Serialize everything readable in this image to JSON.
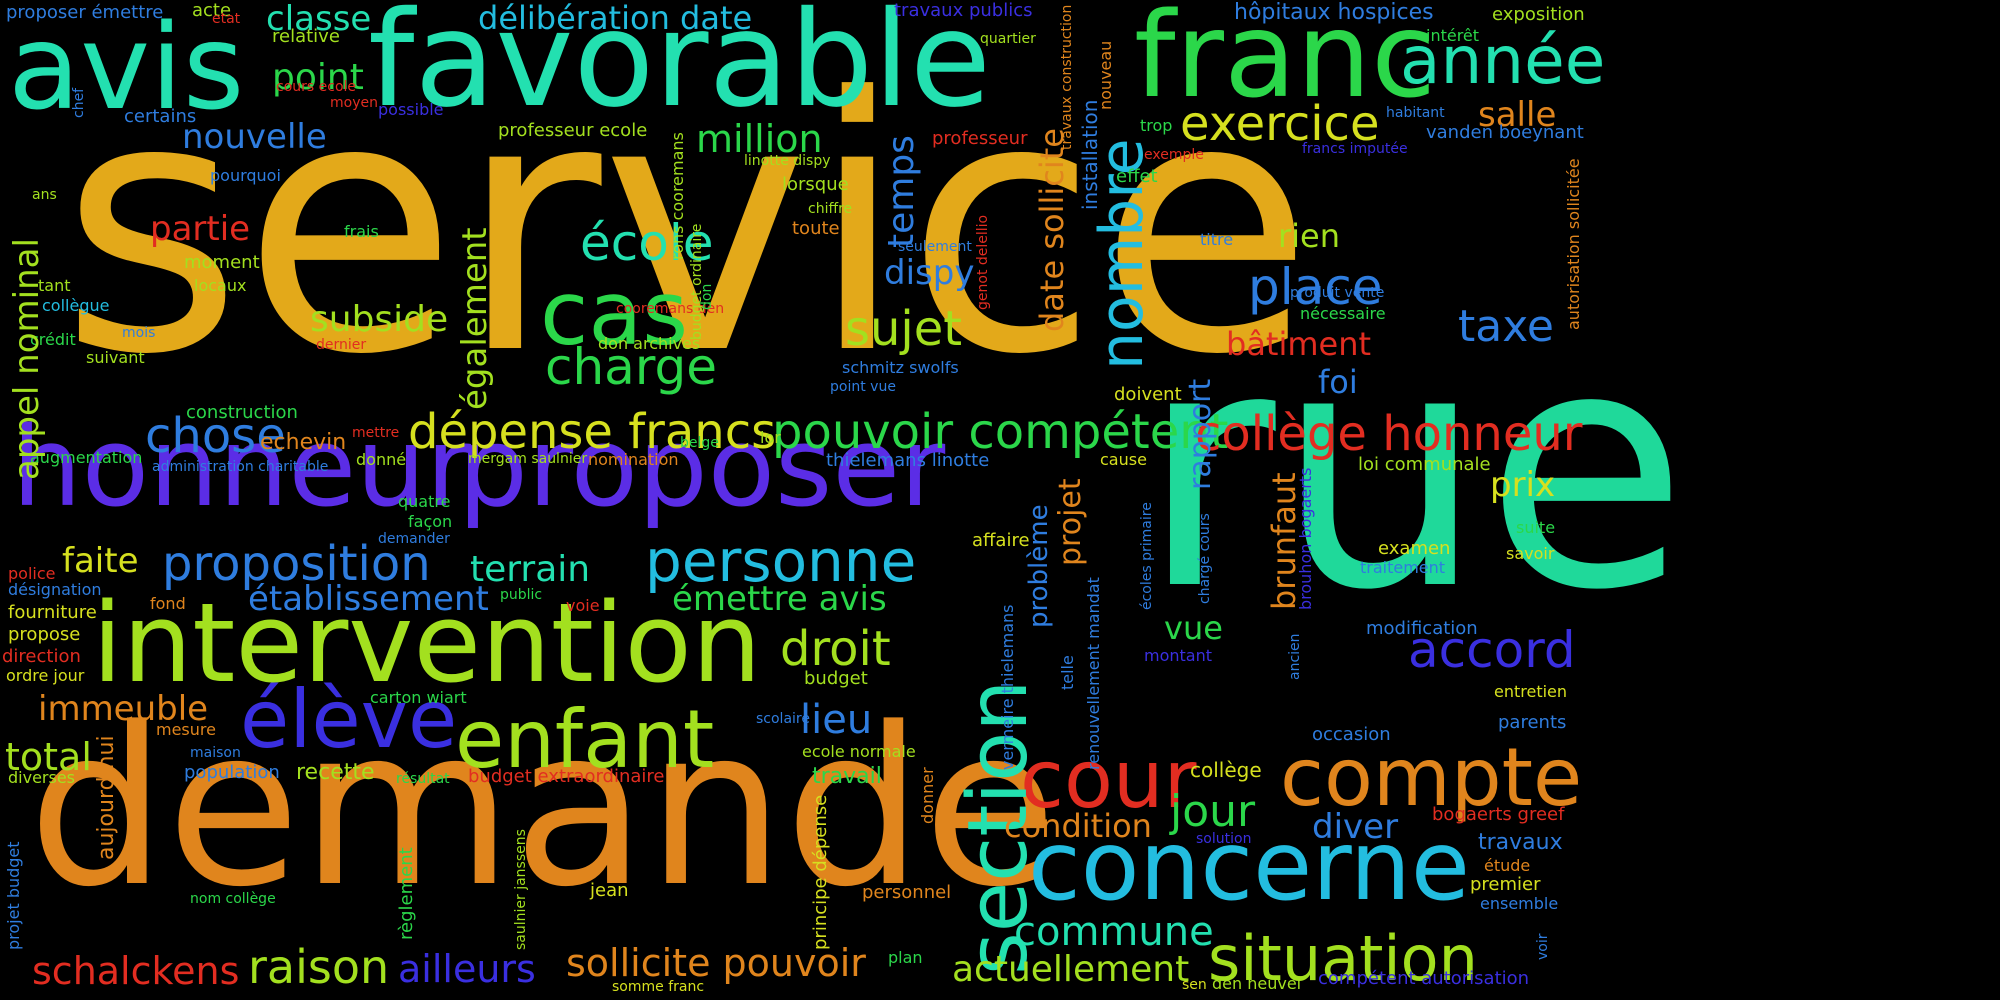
{
  "palette": {
    "orange": "#e0851d",
    "gold": "#e3a91a",
    "teal": "#1fd99a",
    "aqua": "#23e0b0",
    "cyan": "#23bde0",
    "blue": "#2f7ddf",
    "indigo": "#3a2fe0",
    "violet": "#5b2de6",
    "green": "#2bd74a",
    "lime": "#a3e01f",
    "yellow": "#d6e01f",
    "red": "#e22d21"
  },
  "words": [
    {
      "text": "service",
      "color": "gold"
    },
    {
      "text": "rue",
      "color": "teal"
    },
    {
      "text": "demande",
      "color": "orange"
    },
    {
      "text": "favorable",
      "color": "aqua"
    },
    {
      "text": "avis",
      "color": "aqua"
    },
    {
      "text": "franc",
      "color": "green"
    },
    {
      "text": "honneur",
      "color": "violet"
    },
    {
      "text": "proposer",
      "color": "violet"
    },
    {
      "text": "intervention",
      "color": "lime"
    },
    {
      "text": "concerne",
      "color": "cyan"
    },
    {
      "text": "enfant",
      "color": "lime"
    },
    {
      "text": "élève",
      "color": "indigo"
    },
    {
      "text": "cas",
      "color": "green"
    },
    {
      "text": "cour",
      "color": "red"
    },
    {
      "text": "compte",
      "color": "orange"
    },
    {
      "text": "section",
      "color": "aqua"
    },
    {
      "text": "situation",
      "color": "lime"
    },
    {
      "text": "année",
      "color": "aqua"
    },
    {
      "text": "personne",
      "color": "cyan"
    },
    {
      "text": "dépense francs",
      "color": "yellow"
    },
    {
      "text": "pouvoir compétent",
      "color": "green"
    },
    {
      "text": "collège honneur",
      "color": "red"
    },
    {
      "text": "exercice",
      "color": "yellow"
    },
    {
      "text": "nombre",
      "color": "cyan"
    },
    {
      "text": "école",
      "color": "aqua"
    },
    {
      "text": "charge",
      "color": "green"
    },
    {
      "text": "place",
      "color": "blue"
    },
    {
      "text": "proposition",
      "color": "blue"
    },
    {
      "text": "sujet",
      "color": "lime"
    },
    {
      "text": "droit",
      "color": "lime"
    },
    {
      "text": "accord",
      "color": "indigo"
    },
    {
      "text": "raison",
      "color": "lime"
    },
    {
      "text": "sollicite pouvoir",
      "color": "orange"
    },
    {
      "text": "actuellement",
      "color": "lime"
    },
    {
      "text": "schalckens",
      "color": "red"
    },
    {
      "text": "ailleurs",
      "color": "indigo"
    },
    {
      "text": "commune",
      "color": "aqua"
    },
    {
      "text": "jour",
      "color": "green"
    },
    {
      "text": "chose",
      "color": "blue"
    },
    {
      "text": "terrain",
      "color": "aqua"
    },
    {
      "text": "établissement",
      "color": "blue"
    },
    {
      "text": "émettre avis",
      "color": "green"
    },
    {
      "text": "délibération date",
      "color": "cyan"
    },
    {
      "text": "classe",
      "color": "aqua"
    },
    {
      "text": "point",
      "color": "green"
    },
    {
      "text": "nouvelle",
      "color": "blue"
    },
    {
      "text": "million",
      "color": "green"
    },
    {
      "text": "partie",
      "color": "red"
    },
    {
      "text": "subside",
      "color": "lime"
    },
    {
      "text": "lieu",
      "color": "blue"
    },
    {
      "text": "taxe",
      "color": "blue"
    },
    {
      "text": "salle",
      "color": "orange"
    },
    {
      "text": "bâtiment",
      "color": "red"
    },
    {
      "text": "prix",
      "color": "yellow"
    },
    {
      "text": "total",
      "color": "lime"
    },
    {
      "text": "immeuble",
      "color": "orange"
    },
    {
      "text": "faite",
      "color": "yellow"
    },
    {
      "text": "temps",
      "color": "blue"
    },
    {
      "text": "dispy",
      "color": "blue"
    },
    {
      "text": "rien",
      "color": "lime"
    },
    {
      "text": "foi",
      "color": "blue"
    },
    {
      "text": "vue",
      "color": "green"
    },
    {
      "text": "diver",
      "color": "blue"
    },
    {
      "text": "condition",
      "color": "orange"
    },
    {
      "text": "recette",
      "color": "lime"
    },
    {
      "text": "travail",
      "color": "green"
    },
    {
      "text": "population",
      "color": "blue"
    },
    {
      "text": "hôpitaux hospices",
      "color": "blue"
    },
    {
      "text": "vanden boeynant",
      "color": "blue"
    },
    {
      "text": "exposition",
      "color": "lime"
    },
    {
      "text": "travaux publics",
      "color": "indigo"
    },
    {
      "text": "proposer émettre",
      "color": "blue"
    },
    {
      "text": "acte",
      "color": "lime"
    },
    {
      "text": "etat",
      "color": "red"
    },
    {
      "text": "relative",
      "color": "lime"
    },
    {
      "text": "cours ecole",
      "color": "red"
    },
    {
      "text": "moyen",
      "color": "red"
    },
    {
      "text": "possible",
      "color": "indigo"
    },
    {
      "text": "certains",
      "color": "blue"
    },
    {
      "text": "professeur ecole",
      "color": "lime"
    },
    {
      "text": "professeur",
      "color": "red"
    },
    {
      "text": "quartier",
      "color": "lime"
    },
    {
      "text": "linotte dispy",
      "color": "lime"
    },
    {
      "text": "lorsque",
      "color": "lime"
    },
    {
      "text": "chiffre",
      "color": "lime"
    },
    {
      "text": "toute",
      "color": "orange"
    },
    {
      "text": "pourquoi",
      "color": "blue"
    },
    {
      "text": "frais",
      "color": "green"
    },
    {
      "text": "moment",
      "color": "lime"
    },
    {
      "text": "locaux",
      "color": "lime"
    },
    {
      "text": "ans",
      "color": "lime"
    },
    {
      "text": "tant",
      "color": "lime"
    },
    {
      "text": "collègue",
      "color": "cyan"
    },
    {
      "text": "mois",
      "color": "blue"
    },
    {
      "text": "dernier",
      "color": "red"
    },
    {
      "text": "crédit",
      "color": "green"
    },
    {
      "text": "suivant",
      "color": "lime"
    },
    {
      "text": "construction",
      "color": "green"
    },
    {
      "text": "echevin",
      "color": "orange"
    },
    {
      "text": "mettre",
      "color": "red"
    },
    {
      "text": "augmentation",
      "color": "green"
    },
    {
      "text": "administration charitable",
      "color": "blue"
    },
    {
      "text": "donné",
      "color": "lime"
    },
    {
      "text": "mergam saulnier",
      "color": "lime"
    },
    {
      "text": "nomination",
      "color": "orange"
    },
    {
      "text": "thielemans linotte",
      "color": "blue"
    },
    {
      "text": "cause",
      "color": "yellow"
    },
    {
      "text": "loi communale",
      "color": "lime"
    },
    {
      "text": "quatre",
      "color": "green"
    },
    {
      "text": "façon",
      "color": "green"
    },
    {
      "text": "demander",
      "color": "blue"
    },
    {
      "text": "police",
      "color": "red"
    },
    {
      "text": "désignation",
      "color": "blue"
    },
    {
      "text": "fond",
      "color": "orange"
    },
    {
      "text": "fourniture",
      "color": "yellow"
    },
    {
      "text": "propose",
      "color": "yellow"
    },
    {
      "text": "direction",
      "color": "red"
    },
    {
      "text": "ordre jour",
      "color": "yellow"
    },
    {
      "text": "diverses",
      "color": "lime"
    },
    {
      "text": "mesure",
      "color": "orange"
    },
    {
      "text": "maison",
      "color": "blue"
    },
    {
      "text": "nom collège",
      "color": "green"
    },
    {
      "text": "jean",
      "color": "yellow"
    },
    {
      "text": "public",
      "color": "green"
    },
    {
      "text": "voie",
      "color": "red"
    },
    {
      "text": "carton wiart",
      "color": "green"
    },
    {
      "text": "résultat",
      "color": "green"
    },
    {
      "text": "budget extraordinaire",
      "color": "red"
    },
    {
      "text": "scolaire",
      "color": "blue"
    },
    {
      "text": "ecole normale",
      "color": "lime"
    },
    {
      "text": "budget",
      "color": "lime"
    },
    {
      "text": "seulement",
      "color": "blue"
    },
    {
      "text": "schmitz swolfs",
      "color": "blue"
    },
    {
      "text": "point vue",
      "color": "blue"
    },
    {
      "text": "belge",
      "color": "green"
    },
    {
      "text": "lor",
      "color": "lime"
    },
    {
      "text": "cooremans den",
      "color": "red"
    },
    {
      "text": "don archives",
      "color": "lime"
    },
    {
      "text": "affaire",
      "color": "yellow"
    },
    {
      "text": "examen",
      "color": "yellow"
    },
    {
      "text": "suite",
      "color": "green"
    },
    {
      "text": "savoir",
      "color": "yellow"
    },
    {
      "text": "traitement",
      "color": "blue"
    },
    {
      "text": "modification",
      "color": "blue"
    },
    {
      "text": "entretien",
      "color": "yellow"
    },
    {
      "text": "parents",
      "color": "blue"
    },
    {
      "text": "occasion",
      "color": "blue"
    },
    {
      "text": "montant",
      "color": "indigo"
    },
    {
      "text": "collège",
      "color": "yellow"
    },
    {
      "text": "bogaerts greef",
      "color": "red"
    },
    {
      "text": "travaux",
      "color": "blue"
    },
    {
      "text": "étude",
      "color": "orange"
    },
    {
      "text": "premier",
      "color": "yellow"
    },
    {
      "text": "ensemble",
      "color": "blue"
    },
    {
      "text": "solution",
      "color": "indigo"
    },
    {
      "text": "compétent autorisation",
      "color": "indigo"
    },
    {
      "text": "den heuvel",
      "color": "lime"
    },
    {
      "text": "sen",
      "color": "yellow"
    },
    {
      "text": "somme franc",
      "color": "yellow"
    },
    {
      "text": "plan",
      "color": "green"
    },
    {
      "text": "personnel",
      "color": "orange"
    },
    {
      "text": "doivent",
      "color": "yellow"
    },
    {
      "text": "effet",
      "color": "green"
    },
    {
      "text": "trop",
      "color": "green"
    },
    {
      "text": "exemple",
      "color": "red"
    },
    {
      "text": "titre",
      "color": "blue"
    },
    {
      "text": "produit vente",
      "color": "blue"
    },
    {
      "text": "nécessaire",
      "color": "green"
    },
    {
      "text": "francs imputée",
      "color": "indigo"
    },
    {
      "text": "intérêt",
      "color": "green"
    },
    {
      "text": "habitant",
      "color": "blue"
    },
    {
      "text": "appel nominal",
      "color": "lime"
    },
    {
      "text": "chef",
      "color": "blue"
    },
    {
      "text": "également",
      "color": "lime"
    },
    {
      "text": "rons cooremans",
      "color": "lime"
    },
    {
      "text": "budget ordinaire",
      "color": "lime"
    },
    {
      "text": "date sollicite",
      "color": "orange"
    },
    {
      "text": "installation",
      "color": "blue"
    },
    {
      "text": "travaux construction",
      "color": "orange"
    },
    {
      "text": "nouveau",
      "color": "orange"
    },
    {
      "text": "genot delellio",
      "color": "red"
    },
    {
      "text": "don",
      "color": "green"
    },
    {
      "text": "brunfaut",
      "color": "orange"
    },
    {
      "text": "rapport",
      "color": "blue"
    },
    {
      "text": "projet",
      "color": "orange"
    },
    {
      "text": "problème",
      "color": "blue"
    },
    {
      "text": "vermeire thielemans",
      "color": "blue"
    },
    {
      "text": "renouvellement mandat",
      "color": "blue"
    },
    {
      "text": "telle",
      "color": "blue"
    },
    {
      "text": "écoles primaire",
      "color": "blue"
    },
    {
      "text": "chargé cours",
      "color": "blue"
    },
    {
      "text": "brouhon bogaerts",
      "color": "indigo"
    },
    {
      "text": "ancien",
      "color": "blue"
    },
    {
      "text": "autorisation sollicitée",
      "color": "orange"
    },
    {
      "text": "projet budget",
      "color": "blue"
    },
    {
      "text": "aujourd hui",
      "color": "orange"
    },
    {
      "text": "règlement",
      "color": "green"
    },
    {
      "text": "saulnier janssens",
      "color": "lime"
    },
    {
      "text": "principe dépense",
      "color": "yellow"
    },
    {
      "text": "donner",
      "color": "orange"
    },
    {
      "text": "voir",
      "color": "blue"
    }
  ]
}
